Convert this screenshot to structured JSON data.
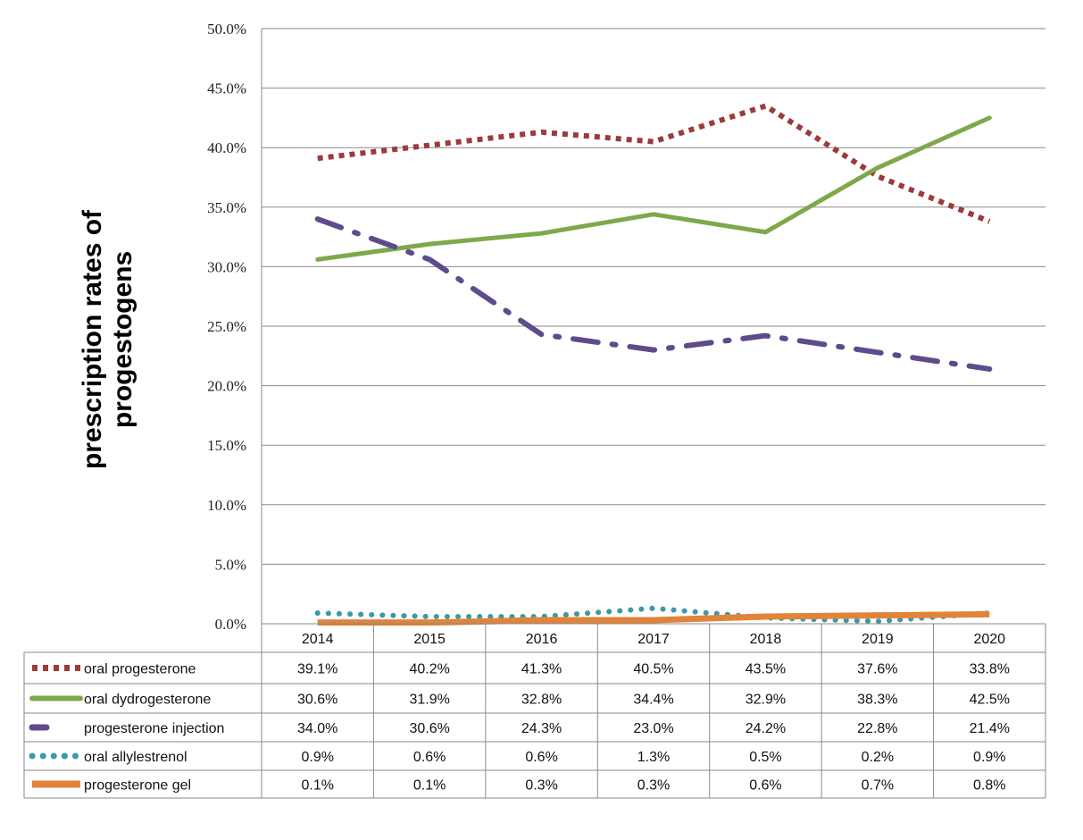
{
  "chart_data": {
    "type": "line",
    "title": "",
    "ylabel_lines": [
      "prescription rates of",
      "progestogens"
    ],
    "xlabel": "",
    "categories": [
      "2014",
      "2015",
      "2016",
      "2017",
      "2018",
      "2019",
      "2020"
    ],
    "ylim": [
      0,
      50
    ],
    "yticks": [
      "0.0%",
      "5.0%",
      "10.0%",
      "15.0%",
      "20.0%",
      "25.0%",
      "30.0%",
      "35.0%",
      "40.0%",
      "45.0%",
      "50.0%"
    ],
    "grid": true,
    "legend_placement": "data-table-below",
    "series": [
      {
        "name": "oral progesterone",
        "values": [
          39.1,
          40.2,
          41.3,
          40.5,
          43.5,
          37.6,
          33.8
        ],
        "labels": [
          "39.1%",
          "40.2%",
          "41.3%",
          "40.5%",
          "43.5%",
          "37.6%",
          "33.8%"
        ],
        "color": "#9b3b3b",
        "style": "square-dot"
      },
      {
        "name": "oral dydrogesterone",
        "values": [
          30.6,
          31.9,
          32.8,
          34.4,
          32.9,
          38.3,
          42.5
        ],
        "labels": [
          "30.6%",
          "31.9%",
          "32.8%",
          "34.4%",
          "32.9%",
          "38.3%",
          "42.5%"
        ],
        "color": "#7fa84a",
        "style": "solid"
      },
      {
        "name": "progesterone injection",
        "values": [
          34.0,
          30.6,
          24.3,
          23.0,
          24.2,
          22.8,
          21.4
        ],
        "labels": [
          "34.0%",
          "30.6%",
          "24.3%",
          "23.0%",
          "24.2%",
          "22.8%",
          "21.4%"
        ],
        "color": "#5f4b8b",
        "style": "long-dash-dot"
      },
      {
        "name": "oral allylestrenol",
        "values": [
          0.9,
          0.6,
          0.6,
          1.3,
          0.5,
          0.2,
          0.9
        ],
        "labels": [
          "0.9%",
          "0.6%",
          "0.6%",
          "1.3%",
          "0.5%",
          "0.2%",
          "0.9%"
        ],
        "color": "#3b9aa6",
        "style": "round-dot"
      },
      {
        "name": "progesterone gel",
        "values": [
          0.1,
          0.1,
          0.3,
          0.3,
          0.6,
          0.7,
          0.8
        ],
        "labels": [
          "0.1%",
          "0.1%",
          "0.3%",
          "0.3%",
          "0.6%",
          "0.7%",
          "0.8%"
        ],
        "color": "#e0843c",
        "style": "solid-thick"
      }
    ]
  }
}
